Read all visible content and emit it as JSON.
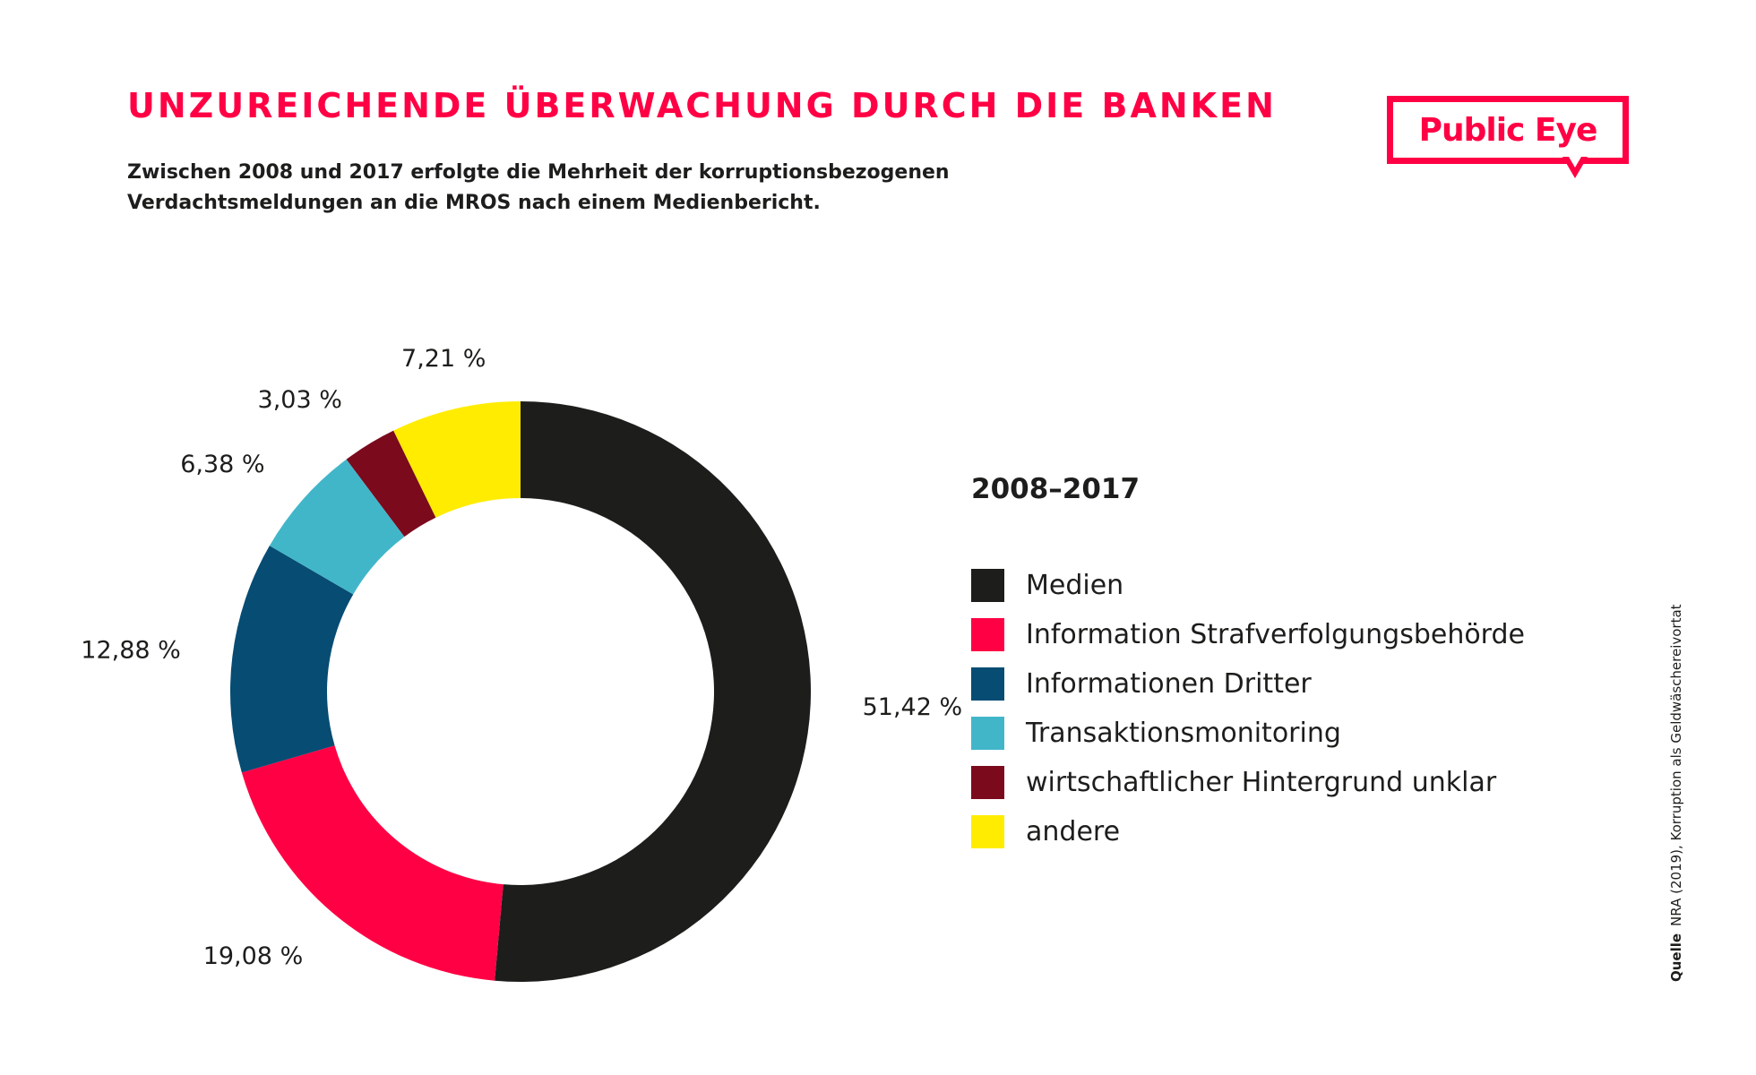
{
  "header": {
    "title": "UNZUREICHENDE ÜBERWACHUNG DURCH DIE BANKEN",
    "subtitle": "Zwischen 2008 und 2017 erfolgte die Mehrheit der korruptionsbezogenen Verdachtsmeldungen an die MROS nach einem Medienbericht."
  },
  "logo": {
    "text": "Public Eye",
    "color": "#ff0044"
  },
  "legend_title": "2008–2017",
  "source": {
    "label": "Quelle",
    "text": "NRA (2019), Korruption als Geldwäschereivortat"
  },
  "chart_data": {
    "type": "pie",
    "variant": "donut",
    "title": "2008–2017",
    "unit": "%",
    "categories": [
      "Medien",
      "Information Strafverfolgungsbehörde",
      "Informationen Dritter",
      "Transaktionsmonitoring",
      "wirtschaftlicher Hintergrund unklar",
      "andere"
    ],
    "values": [
      51.42,
      19.08,
      12.88,
      6.38,
      3.03,
      7.21
    ],
    "labels": [
      "51,42 %",
      "19,08 %",
      "12,88 %",
      "6,38 %",
      "3,03 %",
      "7,21 %"
    ],
    "colors": [
      "#1d1d1b",
      "#ff0044",
      "#064c73",
      "#42b6c9",
      "#7b0a1d",
      "#ffec00"
    ],
    "legend_position": "right"
  }
}
